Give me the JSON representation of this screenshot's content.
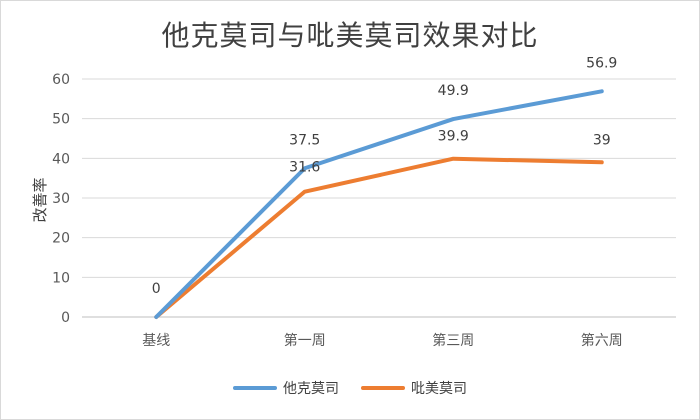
{
  "chart_data": {
    "type": "line",
    "title": "他克莫司与吡美莫司效果对比",
    "ylabel": "改善率",
    "xlabel": "",
    "categories": [
      "基线",
      "第一周",
      "第三周",
      "第六周"
    ],
    "ylim": [
      0,
      60
    ],
    "yticks": [
      0,
      10,
      20,
      30,
      40,
      50,
      60
    ],
    "grid": true,
    "legend_position": "bottom",
    "series": [
      {
        "name": "他克莫司",
        "color": "#5b9bd5",
        "values": [
          0,
          37.5,
          49.9,
          56.9
        ],
        "labels": [
          "0",
          "37.5",
          "49.9",
          "56.9"
        ]
      },
      {
        "name": "吡美莫司",
        "color": "#ed7d31",
        "values": [
          0,
          31.6,
          39.9,
          39
        ],
        "labels": [
          "",
          "31.6",
          "39.9",
          "39"
        ]
      }
    ]
  }
}
